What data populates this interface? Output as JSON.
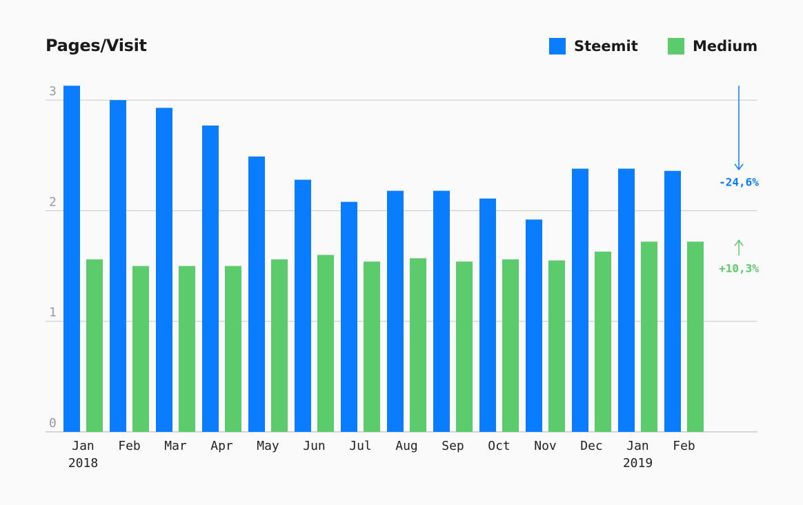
{
  "chart_data": {
    "type": "bar",
    "title": "Pages/Visit",
    "xlabel": "",
    "ylabel": "",
    "ylim": [
      0,
      3.13
    ],
    "yticks": [
      0,
      1,
      2,
      3
    ],
    "grid": true,
    "legend_position": "top-right",
    "categories": [
      "Jan",
      "Feb",
      "Mar",
      "Apr",
      "May",
      "Jun",
      "Jul",
      "Aug",
      "Sep",
      "Oct",
      "Nov",
      "Dec",
      "Jan",
      "Feb"
    ],
    "year_labels": [
      "2018",
      "",
      "",
      "",
      "",
      "",
      "",
      "",
      "",
      "",
      "",
      "",
      "2019",
      ""
    ],
    "series": [
      {
        "name": "Steemit",
        "color": "#0a7cff",
        "values": [
          3.13,
          3.0,
          2.93,
          2.77,
          2.49,
          2.28,
          2.08,
          2.18,
          2.18,
          2.11,
          1.92,
          2.38,
          2.38,
          2.36
        ]
      },
      {
        "name": "Medium",
        "color": "#5ccb6c",
        "values": [
          1.56,
          1.5,
          1.5,
          1.5,
          1.56,
          1.6,
          1.54,
          1.57,
          1.54,
          1.56,
          1.55,
          1.63,
          1.72,
          1.72
        ]
      }
    ],
    "annotations": [
      {
        "series": "Steemit",
        "text": "-24,6%",
        "direction": "down",
        "color": "#0a7cff"
      },
      {
        "series": "Medium",
        "text": "+10,3%",
        "direction": "up",
        "color": "#5ccb6c"
      }
    ]
  }
}
